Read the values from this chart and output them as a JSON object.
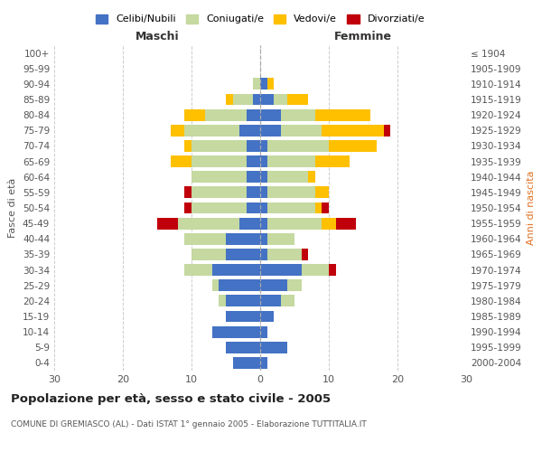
{
  "age_groups": [
    "0-4",
    "5-9",
    "10-14",
    "15-19",
    "20-24",
    "25-29",
    "30-34",
    "35-39",
    "40-44",
    "45-49",
    "50-54",
    "55-59",
    "60-64",
    "65-69",
    "70-74",
    "75-79",
    "80-84",
    "85-89",
    "90-94",
    "95-99",
    "100+"
  ],
  "birth_years": [
    "2000-2004",
    "1995-1999",
    "1990-1994",
    "1985-1989",
    "1980-1984",
    "1975-1979",
    "1970-1974",
    "1965-1969",
    "1960-1964",
    "1955-1959",
    "1950-1954",
    "1945-1949",
    "1940-1944",
    "1935-1939",
    "1930-1934",
    "1925-1929",
    "1920-1924",
    "1915-1919",
    "1910-1914",
    "1905-1909",
    "≤ 1904"
  ],
  "maschi": {
    "celibi": [
      4,
      5,
      7,
      5,
      5,
      6,
      7,
      5,
      5,
      3,
      2,
      2,
      2,
      2,
      2,
      3,
      2,
      1,
      0,
      0,
      0
    ],
    "coniugati": [
      0,
      0,
      0,
      0,
      1,
      1,
      4,
      5,
      6,
      9,
      8,
      8,
      8,
      8,
      8,
      8,
      6,
      3,
      1,
      0,
      0
    ],
    "vedovi": [
      0,
      0,
      0,
      0,
      0,
      0,
      0,
      0,
      0,
      0,
      0,
      0,
      0,
      3,
      1,
      2,
      3,
      1,
      0,
      0,
      0
    ],
    "divorziati": [
      0,
      0,
      0,
      0,
      0,
      0,
      0,
      0,
      0,
      3,
      1,
      1,
      0,
      0,
      0,
      0,
      0,
      0,
      0,
      0,
      0
    ]
  },
  "femmine": {
    "nubili": [
      1,
      4,
      1,
      2,
      3,
      4,
      6,
      1,
      1,
      1,
      1,
      1,
      1,
      1,
      1,
      3,
      3,
      2,
      1,
      0,
      0
    ],
    "coniugate": [
      0,
      0,
      0,
      0,
      2,
      2,
      4,
      5,
      4,
      8,
      7,
      7,
      6,
      7,
      9,
      6,
      5,
      2,
      0,
      0,
      0
    ],
    "vedove": [
      0,
      0,
      0,
      0,
      0,
      0,
      0,
      0,
      0,
      2,
      1,
      2,
      1,
      5,
      7,
      9,
      8,
      3,
      1,
      0,
      0
    ],
    "divorziate": [
      0,
      0,
      0,
      0,
      0,
      0,
      1,
      1,
      0,
      3,
      1,
      0,
      0,
      0,
      0,
      1,
      0,
      0,
      0,
      0,
      0
    ]
  },
  "colors": {
    "celibi": "#4472c4",
    "coniugati": "#c5d9a0",
    "vedovi": "#ffc000",
    "divorziati": "#c0000b"
  },
  "xlim": 30,
  "title": "Popolazione per età, sesso e stato civile - 2005",
  "subtitle": "COMUNE DI GREMIASCO (AL) - Dati ISTAT 1° gennaio 2005 - Elaborazione TUTTITALIA.IT",
  "ylabel_left": "Fasce di età",
  "ylabel_right": "Anni di nascita",
  "xlabel_maschi": "Maschi",
  "xlabel_femmine": "Femmine",
  "legend_labels": [
    "Celibi/Nubili",
    "Coniugati/e",
    "Vedovi/e",
    "Divorziati/e"
  ],
  "background_color": "#ffffff",
  "grid_color": "#cccccc"
}
